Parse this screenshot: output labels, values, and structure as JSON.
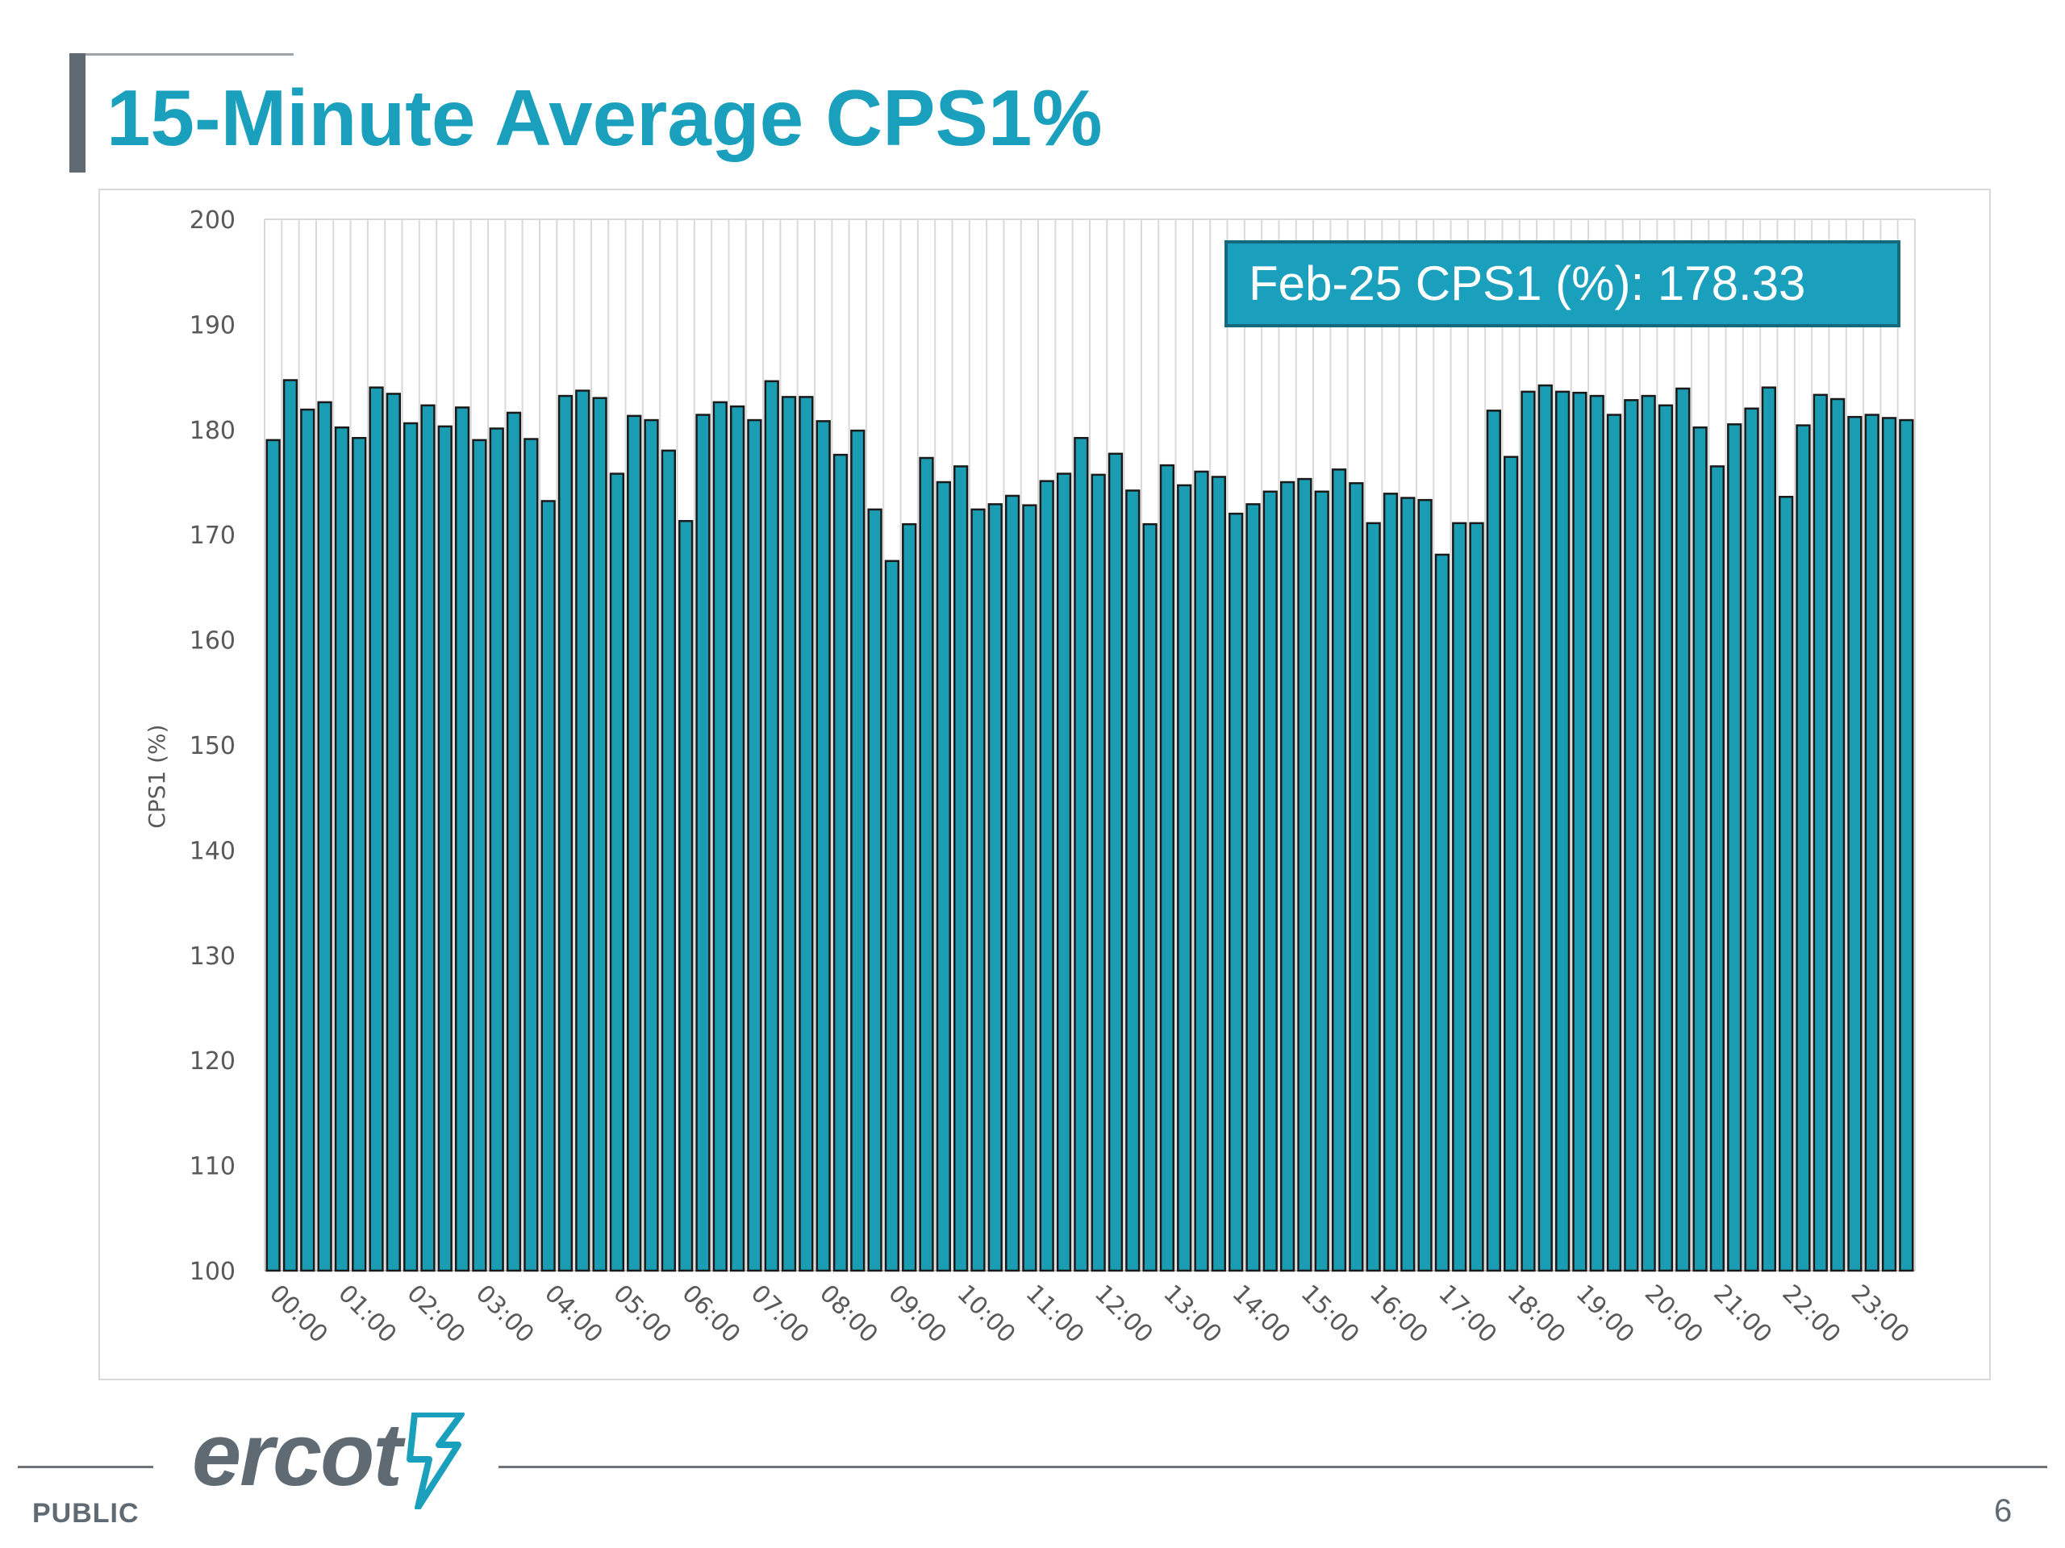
{
  "slide": {
    "title": "15-Minute Average CPS1%",
    "classification": "PUBLIC",
    "page_number": "6",
    "logo_text": "ercot",
    "accent_color": "#1aa0bc",
    "dark_color": "#5f6a72"
  },
  "annotation": {
    "text": "Feb-25 CPS1 (%): 178.33"
  },
  "chart_data": {
    "type": "bar",
    "title": "",
    "xlabel": "",
    "ylabel": "CPS1 (%)",
    "ylim": [
      100,
      200
    ],
    "yticks": [
      100,
      110,
      120,
      130,
      140,
      150,
      160,
      170,
      180,
      190,
      200
    ],
    "x_tick_labels": [
      "00:00",
      "01:00",
      "02:00",
      "03:00",
      "04:00",
      "05:00",
      "06:00",
      "07:00",
      "08:00",
      "09:00",
      "10:00",
      "11:00",
      "12:00",
      "13:00",
      "14:00",
      "15:00",
      "16:00",
      "17:00",
      "18:00",
      "19:00",
      "20:00",
      "21:00",
      "22:00",
      "23:00"
    ],
    "intervals_per_hour": 4,
    "grid": "vertical",
    "bar_color": "#1a9db3",
    "bar_edge_color": "#1a1a1a",
    "values": [
      179,
      184.7,
      181.9,
      182.6,
      180.2,
      179.2,
      184,
      183.4,
      180.6,
      182.3,
      180.3,
      182.1,
      179,
      180.1,
      181.6,
      179.1,
      173.2,
      183.2,
      183.7,
      183,
      175.8,
      181.3,
      180.9,
      178,
      171.3,
      181.4,
      182.6,
      182.2,
      180.9,
      184.6,
      183.1,
      183.1,
      180.8,
      177.6,
      179.9,
      172.4,
      167.5,
      171,
      177.3,
      175,
      176.5,
      172.4,
      172.9,
      173.7,
      172.8,
      175.1,
      175.8,
      179.2,
      175.7,
      177.7,
      174.2,
      171,
      176.6,
      174.7,
      176,
      175.5,
      172,
      172.9,
      174.1,
      175,
      175.3,
      174.1,
      176.2,
      174.9,
      171.1,
      173.9,
      173.5,
      173.3,
      168.1,
      171.1,
      171.1,
      181.8,
      177.4,
      183.6,
      184.2,
      183.6,
      183.5,
      183.2,
      181.4,
      182.8,
      183.2,
      182.3,
      183.9,
      180.2,
      176.5,
      180.5,
      182,
      184,
      173.6,
      180.4,
      183.3,
      182.9,
      181.2,
      181.4,
      181.1,
      180.9
    ]
  }
}
